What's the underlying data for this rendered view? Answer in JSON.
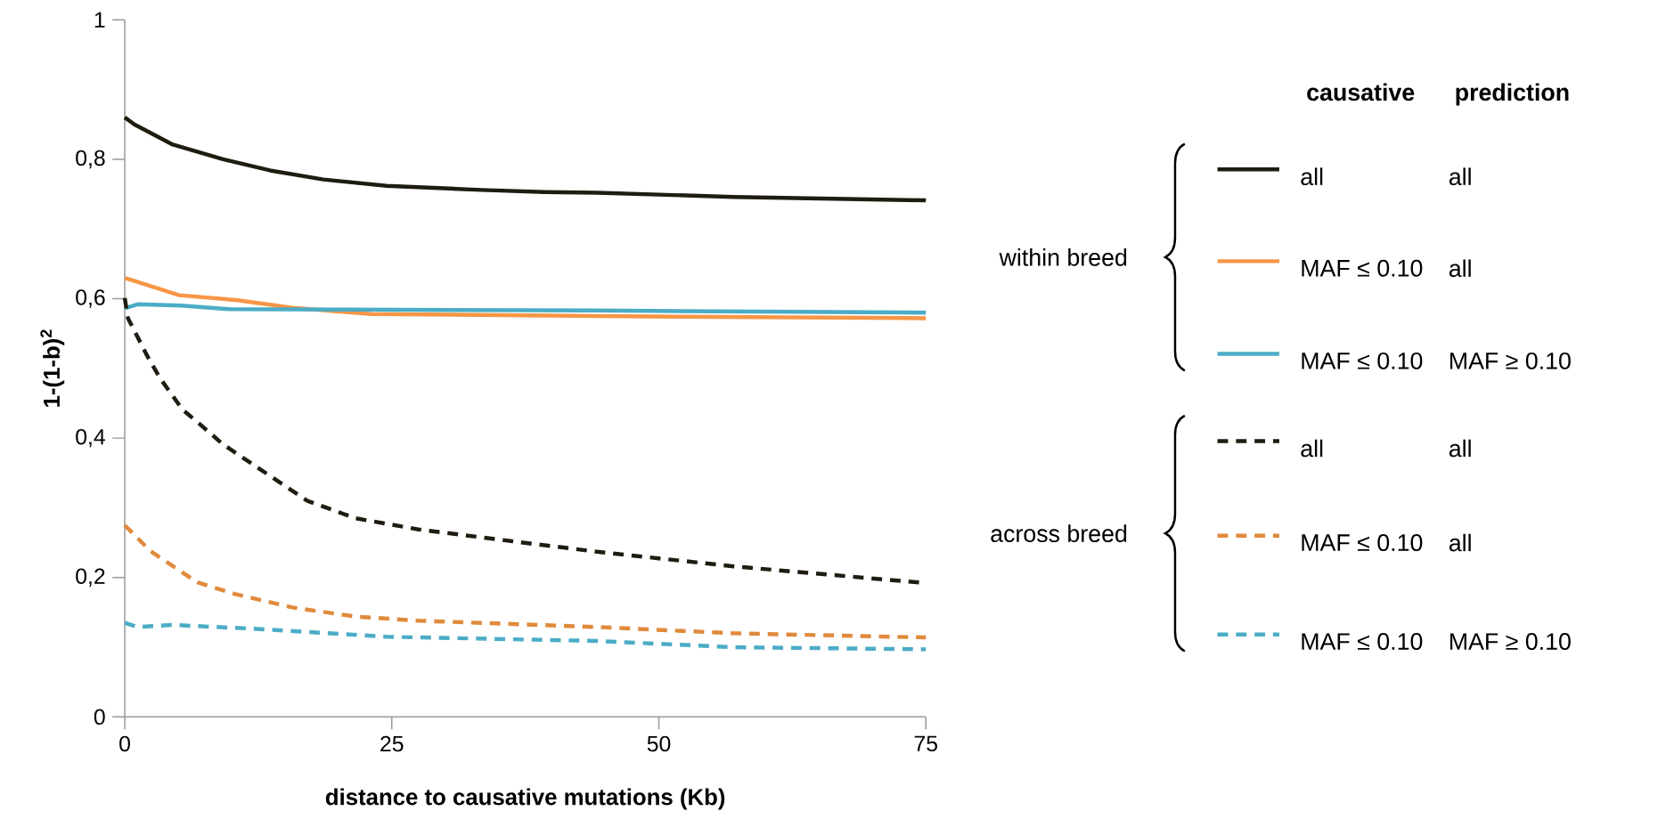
{
  "chart_data": {
    "type": "line",
    "xlabel": "distance to causative mutations (Kb)",
    "ylabel": "1-(1-b)$^{2}$",
    "xlim": [
      0,
      75
    ],
    "xticks": [
      0,
      25,
      50,
      75
    ],
    "ylim": [
      0,
      1
    ],
    "yticks": [
      0,
      {
        "value": 0.2,
        "label": "0,2"
      },
      {
        "value": 0.4,
        "label": "0,4"
      },
      {
        "value": 0.6,
        "label": "0,6"
      },
      {
        "value": 0.8,
        "label": "0,8"
      },
      1
    ],
    "grid": false,
    "legend": "right",
    "marker": "none",
    "annotations": [
      "causative",
      "prediction",
      "within breed",
      "across breed",
      "all",
      "all",
      "MAF ≥ 0.10",
      "all",
      "all",
      "MAF ≥ 0.10"
    ],
    "series": [
      {
        "name": "all",
        "color": "#1f1c10",
        "line_style": "solid",
        "x": [
          0,
          0.9,
          4.5,
          9.2,
          13.6,
          18.6,
          24.5,
          33.4,
          39.3,
          44.2,
          57,
          75
        ],
        "values": [
          0.86,
          0.85,
          0.821,
          0.8,
          0.784,
          0.771,
          0.762,
          0.756,
          0.753,
          0.752,
          0.746,
          0.741
        ]
      },
      {
        "name": "MAF ≤ 0.10",
        "color": "#f79646",
        "line_style": "solid",
        "x": [
          0,
          5.1,
          10.4,
          15.7,
          23.1,
          44.2,
          75
        ],
        "values": [
          0.63,
          0.605,
          0.598,
          0.587,
          0.578,
          0.575,
          0.572
        ]
      },
      {
        "name": "MAF ≤ 0.10",
        "color": "#4bacc6",
        "line_style": "solid",
        "x": [
          0,
          1.2,
          5.3,
          9.8,
          44.2,
          75
        ],
        "values": [
          0.586,
          0.592,
          0.59,
          0.585,
          0.583,
          0.58
        ]
      },
      {
        "name": "all",
        "color": "#1f1c10",
        "line_style": "dashed",
        "x": [
          0,
          0.3,
          2.1,
          3.3,
          5.4,
          6.8,
          9.2,
          12.7,
          17.1,
          21.6,
          27.5,
          36.3,
          44.2,
          57,
          75
        ],
        "values": [
          0.601,
          0.572,
          0.518,
          0.486,
          0.441,
          0.423,
          0.391,
          0.355,
          0.31,
          0.285,
          0.269,
          0.252,
          0.237,
          0.216,
          0.192
        ]
      },
      {
        "name": "MAF ≤ 0.10",
        "color": "#e08a3c",
        "line_style": "dashed",
        "x": [
          0,
          2.4,
          6.8,
          10.4,
          15.7,
          21.6,
          27.5,
          44.2,
          57,
          75
        ],
        "values": [
          0.275,
          0.238,
          0.193,
          0.176,
          0.157,
          0.144,
          0.138,
          0.129,
          0.12,
          0.114
        ]
      },
      {
        "name": "MAF ≤ 0.10",
        "color": "#4bacc6",
        "line_style": "dashed",
        "x": [
          0,
          1.2,
          4.5,
          12.7,
          24.5,
          44.2,
          57,
          75
        ],
        "values": [
          0.135,
          0.129,
          0.132,
          0.126,
          0.115,
          0.109,
          0.1,
          0.097
        ]
      }
    ]
  }
}
